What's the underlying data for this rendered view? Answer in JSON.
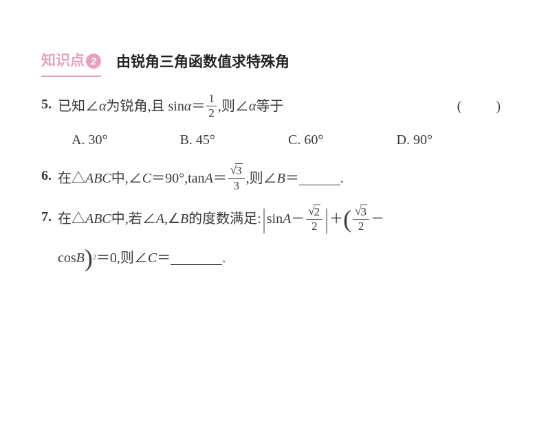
{
  "colors": {
    "pink": "#e8a0c0",
    "text": "#3a3a3a",
    "heading": "#242424",
    "background": "#ffffff"
  },
  "typography": {
    "body_fontsize": 20,
    "heading_fontsize": 21,
    "frac_fontsize": 17,
    "body_font": "SimSun",
    "heading_font": "SimHei"
  },
  "header": {
    "label": "知识点",
    "number": "2",
    "title": "由锐角三角函数值求特殊角"
  },
  "q5": {
    "num": "5.",
    "prefix": "已知∠",
    "alpha1": "α",
    "mid1": " 为锐角,且 sin ",
    "alpha2": "α",
    "eq": "＝",
    "frac_num": "1",
    "frac_den": "2",
    "mid2": ",则∠",
    "alpha3": "α",
    "suffix": " 等于",
    "paren_open": "(",
    "paren_close": ")",
    "options": {
      "a": "A. 30°",
      "b": "B. 45°",
      "c": "C. 60°",
      "d": "D. 90°"
    }
  },
  "q6": {
    "num": "6.",
    "prefix": "在△",
    "abc": "ABC",
    "mid1": " 中,∠",
    "c": "C",
    "mid2": "＝90°,tan ",
    "a": "A",
    "eq": "＝",
    "sqrt_val": "3",
    "frac_den": "3",
    "mid3": ",则∠",
    "b": "B",
    "eq2": "＝",
    "period": "."
  },
  "q7": {
    "num": "7.",
    "prefix": "在△",
    "abc": "ABC",
    "mid1": " 中,若∠",
    "a1": "A",
    "comma": ",∠",
    "b1": "B",
    "mid2": " 的度数满足:",
    "sin": "sin ",
    "a2": "A",
    "minus1": "－",
    "sqrt2": "2",
    "den2": "2",
    "plus": "＋",
    "sqrt3": "3",
    "den3": "2",
    "minus2": "－",
    "cos": "cos ",
    "b2": "B",
    "sq": "2",
    "eq0": "＝0,则∠",
    "c": "C",
    "eq": "＝",
    "period": "."
  }
}
